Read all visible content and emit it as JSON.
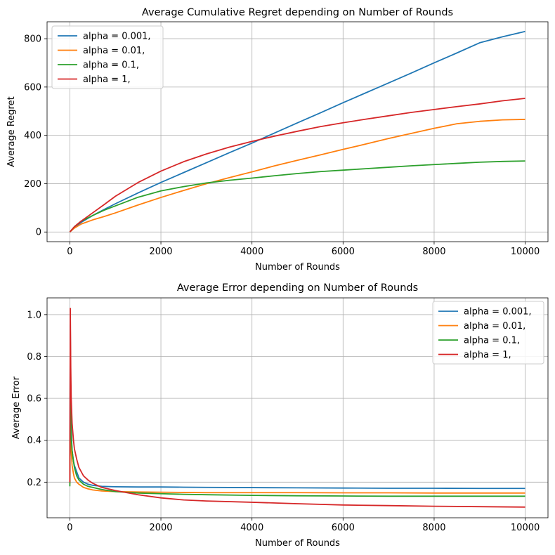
{
  "colors": {
    "alpha_0001": "#1f77b4",
    "alpha_001": "#ff7f0e",
    "alpha_01": "#2ca02c",
    "alpha_1": "#d62728",
    "grid": "#b0b0b0"
  },
  "chart_data": [
    {
      "type": "line",
      "title": "Average Cumulative Regret depending on Number of Rounds",
      "xlabel": "Number of Rounds",
      "ylabel": "Average Regret",
      "xlim": [
        -500,
        10500
      ],
      "ylim": [
        -40,
        870
      ],
      "xticks": [
        0,
        2000,
        4000,
        6000,
        8000,
        10000
      ],
      "yticks": [
        0,
        200,
        400,
        600,
        800
      ],
      "grid": true,
      "legend_position": "upper-left",
      "x": [
        0,
        100,
        250,
        500,
        750,
        1000,
        1500,
        2000,
        2500,
        3000,
        3500,
        4000,
        4500,
        5000,
        5500,
        6000,
        6500,
        7000,
        7500,
        8000,
        8500,
        9000,
        9500,
        10000
      ],
      "series": [
        {
          "name": "alpha = 0.001,",
          "color": "alpha_0001",
          "values": [
            0,
            19,
            40,
            68,
            93,
            117,
            162,
            205,
            246,
            287,
            328,
            368,
            410,
            452,
            493,
            535,
            576,
            617,
            658,
            700,
            741,
            783,
            808,
            830
          ]
        },
        {
          "name": "alpha = 0.01,",
          "color": "alpha_001",
          "values": [
            0,
            16,
            33,
            50,
            64,
            79,
            112,
            143,
            172,
            200,
            225,
            249,
            274,
            297,
            319,
            342,
            364,
            387,
            408,
            429,
            448,
            458,
            464,
            466
          ]
        },
        {
          "name": "alpha = 0.1,",
          "color": "alpha_01",
          "values": [
            0,
            22,
            45,
            68,
            90,
            108,
            144,
            170,
            188,
            203,
            214,
            223,
            233,
            242,
            250,
            256,
            262,
            268,
            274,
            279,
            284,
            289,
            292,
            294
          ]
        },
        {
          "name": "alpha = 1,",
          "color": "alpha_1",
          "values": [
            0,
            22,
            45,
            79,
            113,
            148,
            205,
            252,
            291,
            323,
            351,
            375,
            397,
            417,
            436,
            452,
            467,
            481,
            495,
            507,
            519,
            530,
            543,
            553
          ]
        }
      ]
    },
    {
      "type": "line",
      "title": "Average Error depending on Number of Rounds",
      "xlabel": "Number of Rounds",
      "ylabel": "Average Error",
      "xlim": [
        -500,
        10500
      ],
      "ylim": [
        0.03,
        1.08
      ],
      "xticks": [
        0,
        2000,
        4000,
        6000,
        8000,
        10000
      ],
      "yticks": [
        0.2,
        0.4,
        0.6,
        0.8,
        1.0
      ],
      "ytick_labels": [
        "0.2",
        "0.4",
        "0.6",
        "0.8",
        "1.0"
      ],
      "grid": true,
      "legend_position": "upper-right",
      "x": [
        0,
        10,
        20,
        30,
        50,
        80,
        100,
        150,
        200,
        300,
        400,
        500,
        700,
        1000,
        1500,
        2000,
        2500,
        3000,
        4000,
        5000,
        6000,
        7000,
        8000,
        9000,
        10000
      ],
      "series": [
        {
          "name": "alpha = 0.001,",
          "color": "alpha_0001",
          "values": [
            0.2,
            0.95,
            0.6,
            0.45,
            0.35,
            0.3,
            0.28,
            0.25,
            0.22,
            0.2,
            0.19,
            0.185,
            0.18,
            0.178,
            0.177,
            0.177,
            0.176,
            0.175,
            0.174,
            0.173,
            0.172,
            0.171,
            0.171,
            0.17,
            0.17
          ]
        },
        {
          "name": "alpha = 0.01,",
          "color": "alpha_001",
          "values": [
            0.19,
            0.6,
            0.45,
            0.35,
            0.28,
            0.24,
            0.22,
            0.2,
            0.19,
            0.175,
            0.168,
            0.163,
            0.158,
            0.155,
            0.153,
            0.152,
            0.151,
            0.15,
            0.15,
            0.15,
            0.149,
            0.149,
            0.148,
            0.148,
            0.148
          ]
        },
        {
          "name": "alpha = 0.1,",
          "color": "alpha_01",
          "values": [
            0.18,
            0.58,
            0.5,
            0.42,
            0.35,
            0.3,
            0.27,
            0.23,
            0.21,
            0.19,
            0.18,
            0.175,
            0.165,
            0.155,
            0.148,
            0.145,
            0.142,
            0.14,
            0.137,
            0.135,
            0.134,
            0.133,
            0.133,
            0.133,
            0.133
          ]
        },
        {
          "name": "alpha = 1,",
          "color": "alpha_1",
          "values": [
            0.2,
            1.03,
            0.75,
            0.6,
            0.48,
            0.4,
            0.36,
            0.31,
            0.27,
            0.23,
            0.21,
            0.195,
            0.175,
            0.16,
            0.14,
            0.125,
            0.115,
            0.11,
            0.104,
            0.097,
            0.091,
            0.088,
            0.085,
            0.083,
            0.081
          ]
        }
      ]
    }
  ]
}
